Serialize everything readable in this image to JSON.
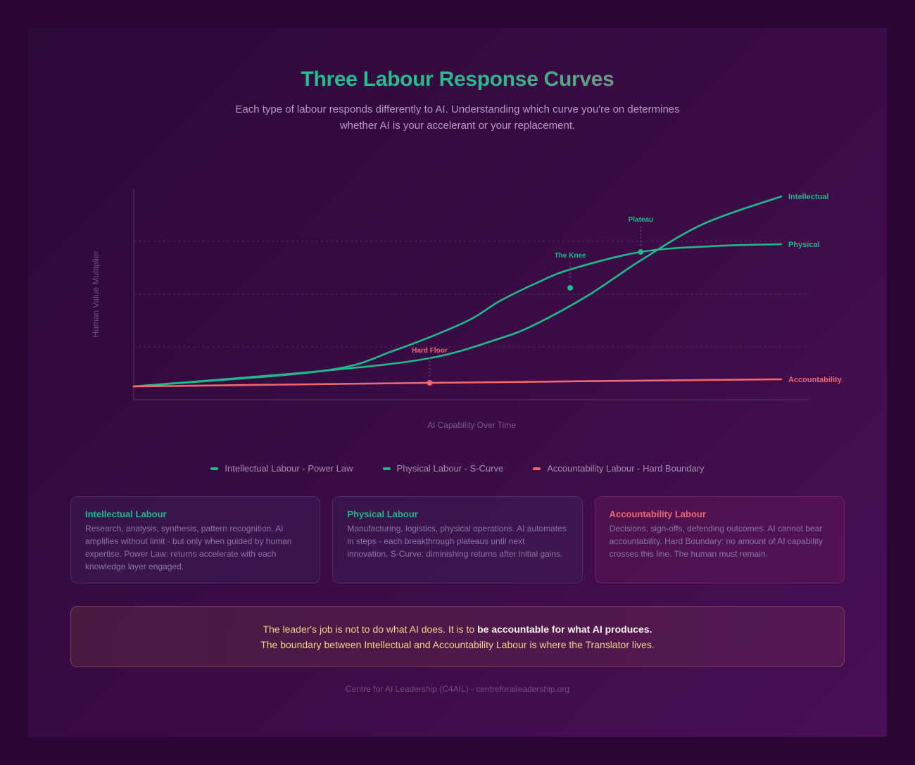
{
  "header": {
    "title": "Three Labour Response Curves",
    "subtitle_line1": "Each type of labour responds differently to AI. Understanding which curve you're on determines",
    "subtitle_line2": "whether AI is your accelerant or your replacement."
  },
  "colors": {
    "green": "#20b98a",
    "coral": "#f0686e",
    "panel_top_left": "#2c0a3a",
    "panel_bottom_right": "#4a0f57",
    "outer_bg": "#2a0635",
    "callout_text": "#f2d38a"
  },
  "chart_data": {
    "type": "line",
    "title": "Three Labour Response Curves",
    "xlabel": "AI Capability Over Time",
    "ylabel": "Human Value Multiplier",
    "xlim": [
      0,
      100
    ],
    "ylim": [
      0,
      10
    ],
    "grid": "horizontal dashed",
    "gridlines_y": [
      2.5,
      5,
      7.5
    ],
    "legend_position": "bottom",
    "series": [
      {
        "name": "Intellectual Labour - Power Law",
        "end_label": "Intellectual",
        "color": "#20b98a",
        "x": [
          0,
          29.3,
          45.7,
          56.5,
          62,
          70.1,
          78.3,
          88,
          100
        ],
        "y": [
          0.63,
          1.37,
          1.97,
          2.9,
          3.57,
          4.93,
          6.6,
          8.33,
          9.63
        ]
      },
      {
        "name": "Physical Labour - S-Curve",
        "end_label": "Physical",
        "color": "#20b98a",
        "x": [
          0,
          29.3,
          40.2,
          51.1,
          56.5,
          62,
          67.4,
          78.3,
          89.1,
          100
        ],
        "y": [
          0.63,
          1.37,
          2.33,
          3.67,
          4.67,
          5.5,
          6.17,
          7.0,
          7.27,
          7.37
        ]
      },
      {
        "name": "Accountability Labour - Hard Boundary",
        "end_label": "Accountability",
        "color": "#f0686e",
        "x": [
          0,
          45.7,
          100
        ],
        "y": [
          0.63,
          0.8,
          0.97
        ]
      }
    ],
    "annotations": [
      {
        "label": "Hard Floor",
        "x": 45.7,
        "y": 0.8,
        "color": "#f0686e"
      },
      {
        "label": "The Knee",
        "x": 67.4,
        "y": 5.3,
        "color": "#20b98a"
      },
      {
        "label": "Plateau",
        "x": 78.3,
        "y": 7.0,
        "color": "#20b98a"
      }
    ]
  },
  "legend": [
    {
      "label": "Intellectual Labour - Power Law",
      "color": "#20b98a"
    },
    {
      "label": "Physical Labour - S-Curve",
      "color": "#20b98a"
    },
    {
      "label": "Accountability Labour - Hard Boundary",
      "color": "#f0686e"
    }
  ],
  "cards": [
    {
      "title": "Intellectual Labour",
      "color": "#20b98a",
      "body": "Research, analysis, synthesis, pattern recognition. AI amplifies without limit - but only when guided by human expertise. Power Law: returns accelerate with each knowledge layer engaged."
    },
    {
      "title": "Physical Labour",
      "color": "#20b98a",
      "body": "Manufacturing, logistics, physical operations. AI automates in steps - each breakthrough plateaus until next innovation. S-Curve: diminishing returns after initial gains."
    },
    {
      "title": "Accountability Labour",
      "color": "#f0686e",
      "body": "Decisions, sign-offs, defending outcomes. AI cannot bear accountability. Hard Boundary: no amount of AI capability crosses this line. The human must remain."
    }
  ],
  "callout": {
    "line1_plain": "The leader's job is not to do what AI does. It is to ",
    "line1_bold": "be accountable for what AI produces.",
    "line2": "The boundary between Intellectual and Accountability Labour is where the Translator lives."
  },
  "footer": {
    "text": "Centre for AI Leadership (C4AIL) - centreforaileadership.org"
  }
}
